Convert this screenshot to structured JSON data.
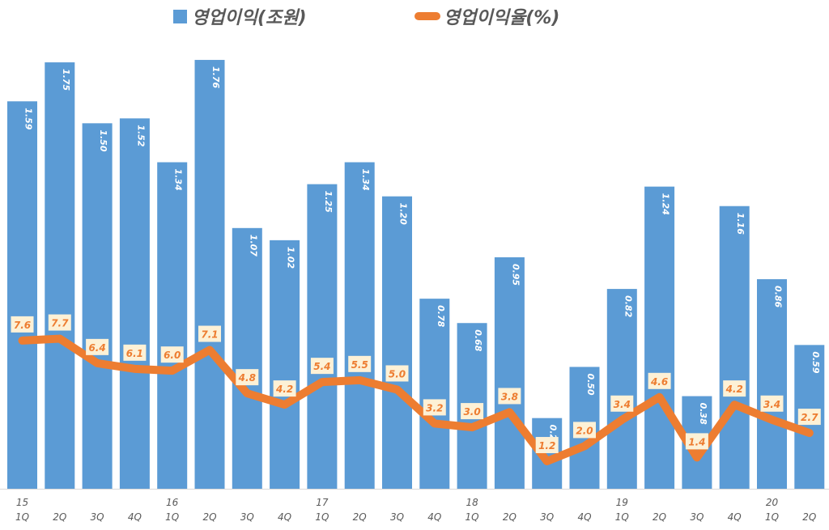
{
  "chart_data": {
    "type": "bar+line",
    "categories": [
      "1Q",
      "2Q",
      "3Q",
      "4Q",
      "1Q",
      "2Q",
      "3Q",
      "4Q",
      "1Q",
      "2Q",
      "3Q",
      "4Q",
      "1Q",
      "2Q",
      "3Q",
      "4Q",
      "1Q",
      "2Q",
      "3Q",
      "4Q",
      "1Q",
      "2Q"
    ],
    "year_labels": [
      "15",
      "",
      "",
      "",
      "16",
      "",
      "",
      "",
      "17",
      "",
      "",
      "",
      "18",
      "",
      "",
      "",
      "19",
      "",
      "",
      "",
      "20",
      ""
    ],
    "series": [
      {
        "name": "영업이익(조원)",
        "type": "bar",
        "color": "#5b9bd5",
        "axis": "primary",
        "values": [
          1.59,
          1.75,
          1.5,
          1.52,
          1.34,
          1.76,
          1.07,
          1.02,
          1.25,
          1.34,
          1.2,
          0.78,
          0.68,
          0.95,
          0.29,
          0.5,
          0.82,
          1.24,
          0.38,
          1.16,
          0.86,
          0.59
        ]
      },
      {
        "name": "영업이익율(%)",
        "type": "line",
        "color": "#ed7d31",
        "axis": "secondary",
        "values": [
          7.6,
          7.7,
          6.4,
          6.1,
          6.0,
          7.1,
          4.8,
          4.2,
          5.4,
          5.5,
          5.0,
          3.2,
          3.0,
          3.8,
          1.2,
          2.0,
          3.4,
          4.6,
          1.4,
          4.2,
          3.4,
          2.7
        ]
      }
    ],
    "ylim": [
      0,
      1.8
    ],
    "y2lim": [
      0,
      23
    ],
    "grid": false,
    "legend": "top",
    "data_labels": true
  }
}
